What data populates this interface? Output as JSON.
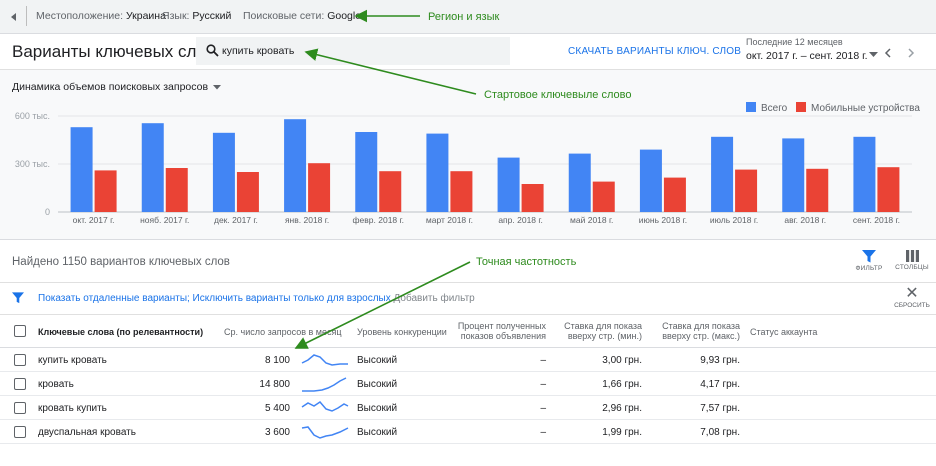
{
  "topbar": {
    "location_label": "Местоположение:",
    "location_value": "Украина",
    "language_label": "Язык:",
    "language_value": "Русский",
    "network_label": "Поисковые сети:",
    "network_value": "Google",
    "annotation": "Регион и язык"
  },
  "header": {
    "title": "Варианты ключевых слов",
    "search_value": "купить кровать",
    "download_label": "СКАЧАТЬ ВАРИАНТЫ КЛЮЧ. СЛОВ",
    "period_label": "Последние 12 месяцев",
    "period_value": "окт. 2017 г. – сент. 2018 г.",
    "annotation": "Стартовое ключевыле слово"
  },
  "chart": {
    "metric_selector": "Динамика объемов поисковых запросов",
    "legend_total": "Всего",
    "legend_mobile": "Мобильные устройства"
  },
  "chart_data": {
    "type": "bar",
    "categories": [
      "окт. 2017 г.",
      "нояб. 2017 г.",
      "дек. 2017 г.",
      "янв. 2018 г.",
      "февр. 2018 г.",
      "март 2018 г.",
      "апр. 2018 г.",
      "май 2018 г.",
      "июнь 2018 г.",
      "июль 2018 г.",
      "авг. 2018 г.",
      "сент. 2018 г."
    ],
    "series": [
      {
        "name": "Всего",
        "color": "#4285f4",
        "values": [
          530000,
          555000,
          495000,
          580000,
          500000,
          490000,
          340000,
          365000,
          390000,
          470000,
          460000,
          470000
        ]
      },
      {
        "name": "Мобильные устройства",
        "color": "#ea4335",
        "values": [
          260000,
          275000,
          250000,
          305000,
          255000,
          255000,
          175000,
          190000,
          215000,
          265000,
          270000,
          280000
        ]
      }
    ],
    "ytick_labels": [
      "0",
      "300 тыс.",
      "600 тыс."
    ],
    "ytick_values": [
      0,
      300000,
      600000
    ],
    "ylim": [
      0,
      600000
    ],
    "legend": "top-right",
    "grid": true
  },
  "results": {
    "found_text": "Найдено 1150 вариантов ключевых слов",
    "filter_label": "ФИЛЬТР",
    "columns_label": "СТОЛБЦЫ",
    "annotation": "Точная частотность",
    "filter_links": "Показать отдаленные варианты; Исключить варианты только для взрослых",
    "add_filter": "Добавить фильтр",
    "reset_label": "СБРОСИТЬ"
  },
  "table": {
    "headers": {
      "keyword": "Ключевые слова (по релевантности)",
      "avg_searches": "Ср. число запросов в месяц",
      "competition": "Уровень конкуренции",
      "impression_share_1": "Процент полученных",
      "impression_share_2": "показов объявления",
      "bid_low_1": "Ставка для показа",
      "bid_low_2": "вверху стр. (мин.)",
      "bid_high_1": "Ставка для показа",
      "bid_high_2": "вверху стр. (макс.)",
      "account_status": "Статус аккаунта"
    },
    "rows": [
      {
        "keyword": "купить кровать",
        "searches": "8 100",
        "competition": "Высокий",
        "impression_share": "–",
        "bid_low": "3,00 грн.",
        "bid_high": "9,93 грн."
      },
      {
        "keyword": "кровать",
        "searches": "14 800",
        "competition": "Высокий",
        "impression_share": "–",
        "bid_low": "1,66 грн.",
        "bid_high": "4,17 грн."
      },
      {
        "keyword": "кровать купить",
        "searches": "5 400",
        "competition": "Высокий",
        "impression_share": "–",
        "bid_low": "2,96 грн.",
        "bid_high": "7,57 грн."
      },
      {
        "keyword": "двуспальная кровать",
        "searches": "3 600",
        "competition": "Высокий",
        "impression_share": "–",
        "bid_low": "1,99 грн.",
        "bid_high": "7,08 грн."
      }
    ]
  }
}
